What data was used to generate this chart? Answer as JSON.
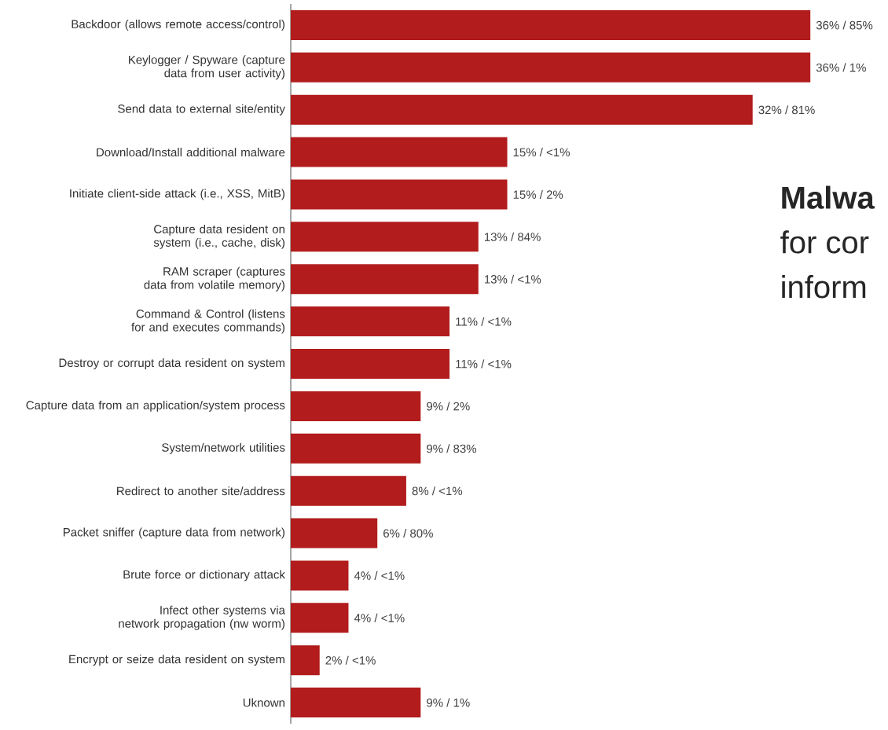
{
  "chart_data": {
    "type": "bar",
    "orientation": "horizontal",
    "categories": [
      "Backdoor (allows remote access/control)",
      "Keylogger / Spyware (capture data from user activity)",
      "Send data to external site/entity",
      "Download/Install additional malware",
      "Initiate client-side attack (i.e., XSS, MitB)",
      "Capture data resident on system (i.e., cache, disk)",
      "RAM scraper (captures data from volatile memory)",
      "Command & Control (listens for and executes commands)",
      "Destroy or corrupt data resident on system",
      "Capture data from an application/system process",
      "System/network utilities",
      "Redirect to another site/address",
      "Packet sniffer (capture data from network)",
      "Brute force or dictionary attack",
      "Infect other systems via network propagation (nw worm)",
      "Encrypt or seize data resident on system",
      "Uknown"
    ],
    "values": [
      36,
      36,
      32,
      15,
      15,
      13,
      13,
      11,
      11,
      9,
      9,
      8,
      6,
      4,
      4,
      2,
      9
    ],
    "value_labels": [
      "36% / 85%",
      "36% / 1%",
      "32% / 81%",
      "15% / <1%",
      "15% / 2%",
      "13% / 84%",
      "13% / <1%",
      "11% / <1%",
      "11% / <1%",
      "9% / 2%",
      "9% / 83%",
      "8% / <1%",
      "6% / 80%",
      "4% / <1%",
      "4% / <1%",
      "2% / <1%",
      "9% / 1%"
    ],
    "color": "#b21c1c",
    "annotations": [
      "Malwa",
      "for cor",
      "inform"
    ]
  }
}
